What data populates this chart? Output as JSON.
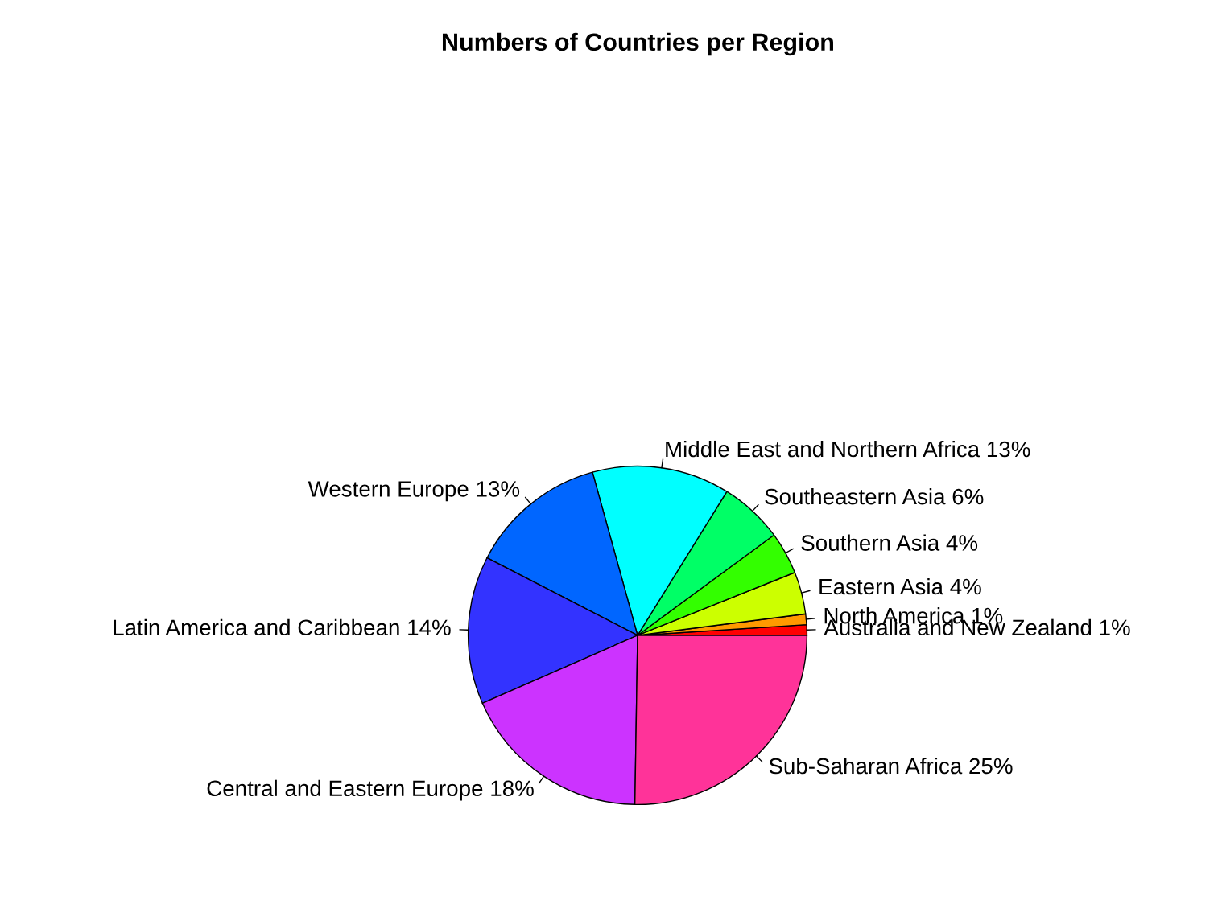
{
  "chart_data": {
    "type": "pie",
    "title": "Numbers of Countries per Region",
    "categories": [
      "Australia and New Zealand 1%",
      "North America 1%",
      "Eastern Asia 4%",
      "Southern Asia 4%",
      "Southeastern Asia 6%",
      "Middle East and Northern Africa 13%",
      "Western Europe 13%",
      "Latin America and Caribbean 14%",
      "Central and Eastern Europe 18%",
      "Sub-Saharan Africa 25%"
    ],
    "values": [
      1,
      1,
      4,
      4,
      6,
      13,
      13,
      14,
      18,
      25
    ],
    "colors": [
      "#ff0000",
      "#ff9900",
      "#ccff00",
      "#33ff00",
      "#00ff66",
      "#00ffff",
      "#0066ff",
      "#3333ff",
      "#cc33ff",
      "#ff3399"
    ]
  }
}
